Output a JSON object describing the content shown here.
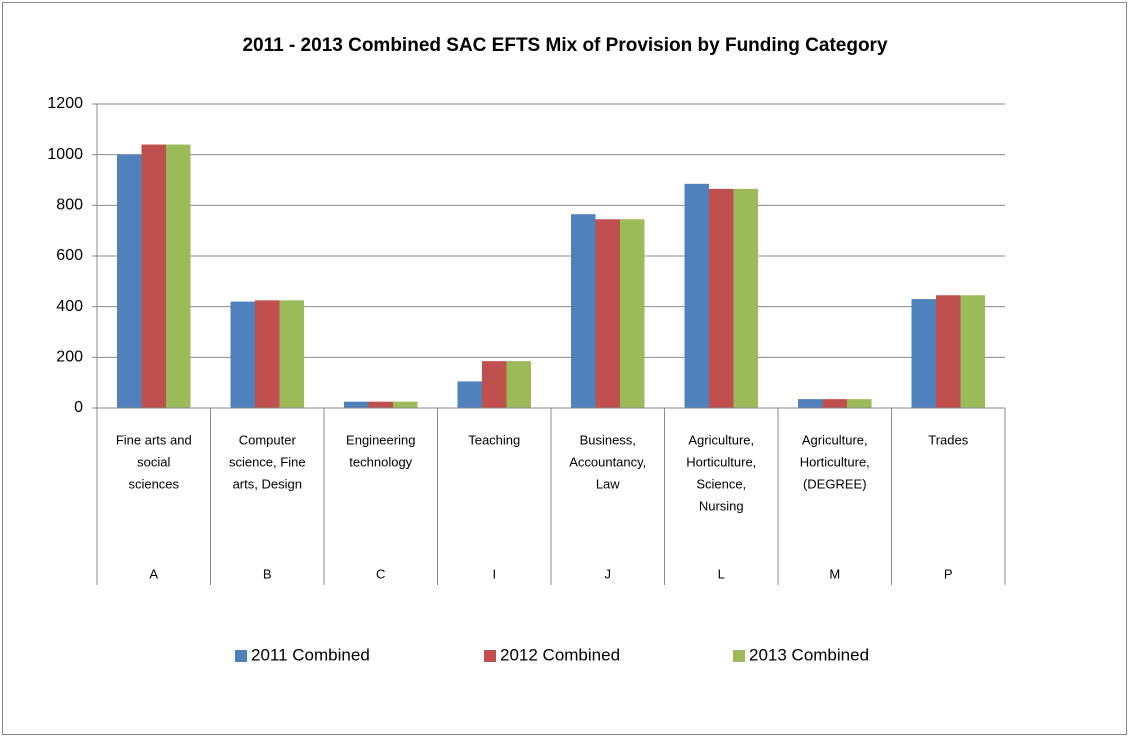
{
  "chart_data": {
    "type": "bar",
    "title": "2011 - 2013 Combined SAC EFTS Mix of Provision by Funding Category",
    "categories": [
      "A",
      "B",
      "C",
      "I",
      "J",
      "L",
      "M",
      "P"
    ],
    "category_descriptions": [
      [
        "Fine arts and",
        "social",
        "sciences"
      ],
      [
        "Computer",
        "science, Fine",
        "arts, Design"
      ],
      [
        "Engineering",
        "technology"
      ],
      [
        "Teaching"
      ],
      [
        "Business,",
        "Accountancy,",
        "Law"
      ],
      [
        "Agriculture,",
        "Horticulture,",
        "Science,",
        "Nursing"
      ],
      [
        "Agriculture,",
        "Horticulture,",
        "(DEGREE)"
      ],
      [
        "Trades"
      ]
    ],
    "series": [
      {
        "name": "2011 Combined",
        "color": "#4f81bd",
        "values": [
          1000,
          420,
          25,
          105,
          765,
          885,
          35,
          430
        ]
      },
      {
        "name": "2012 Combined",
        "color": "#c0504d",
        "values": [
          1040,
          425,
          25,
          185,
          745,
          865,
          35,
          445
        ]
      },
      {
        "name": "2013 Combined",
        "color": "#9bbb59",
        "values": [
          1040,
          425,
          25,
          185,
          745,
          865,
          35,
          445
        ]
      }
    ],
    "ylim": [
      0,
      1200
    ],
    "yticks": [
      0,
      200,
      400,
      600,
      800,
      1000,
      1200
    ],
    "grid": true,
    "legend": "bottom"
  }
}
